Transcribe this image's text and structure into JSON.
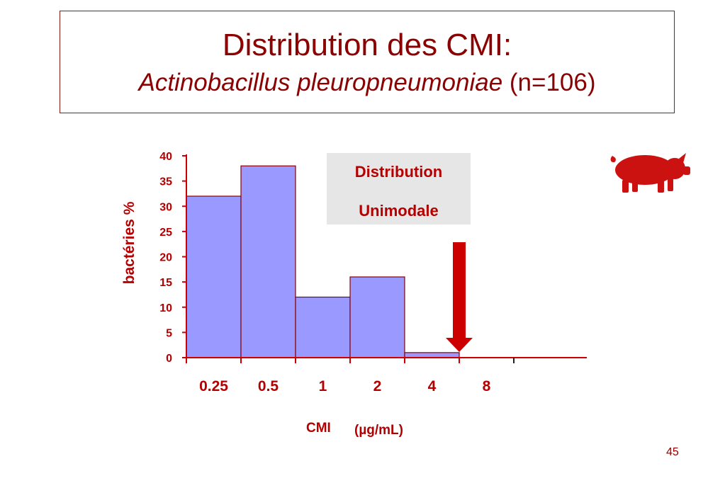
{
  "title": {
    "line1": "Distribution des CMI:",
    "species": "Actinobacillus pleuropneumoniae",
    "count": "(n=106)"
  },
  "annotation": {
    "line1": "Distribution",
    "line2": "Unimodale"
  },
  "axis": {
    "ylabel": "bactéries %",
    "xlabel": "CMI",
    "xunit": "(µg/mL)"
  },
  "page_number": "45",
  "colors": {
    "bar_fill": "#9999ff",
    "bar_stroke": "#8b0000",
    "axis": "#cc0000",
    "text_red": "#b30000",
    "title": "#8b0000",
    "arrow": "#cc0000"
  },
  "icons": [
    "pig-icon",
    "down-arrow-icon"
  ],
  "chart_data": {
    "type": "bar",
    "categories": [
      "0.25",
      "0.5",
      "1",
      "2",
      "4",
      "8"
    ],
    "values": [
      32,
      38,
      12,
      16,
      1,
      0
    ],
    "yticks": [
      0,
      5,
      10,
      15,
      20,
      25,
      30,
      35,
      40
    ],
    "ylim": [
      0,
      40
    ],
    "ylabel": "bactéries %",
    "xlabel": "CMI (µg/mL)",
    "arrow_at_category": "4",
    "grid": false
  }
}
